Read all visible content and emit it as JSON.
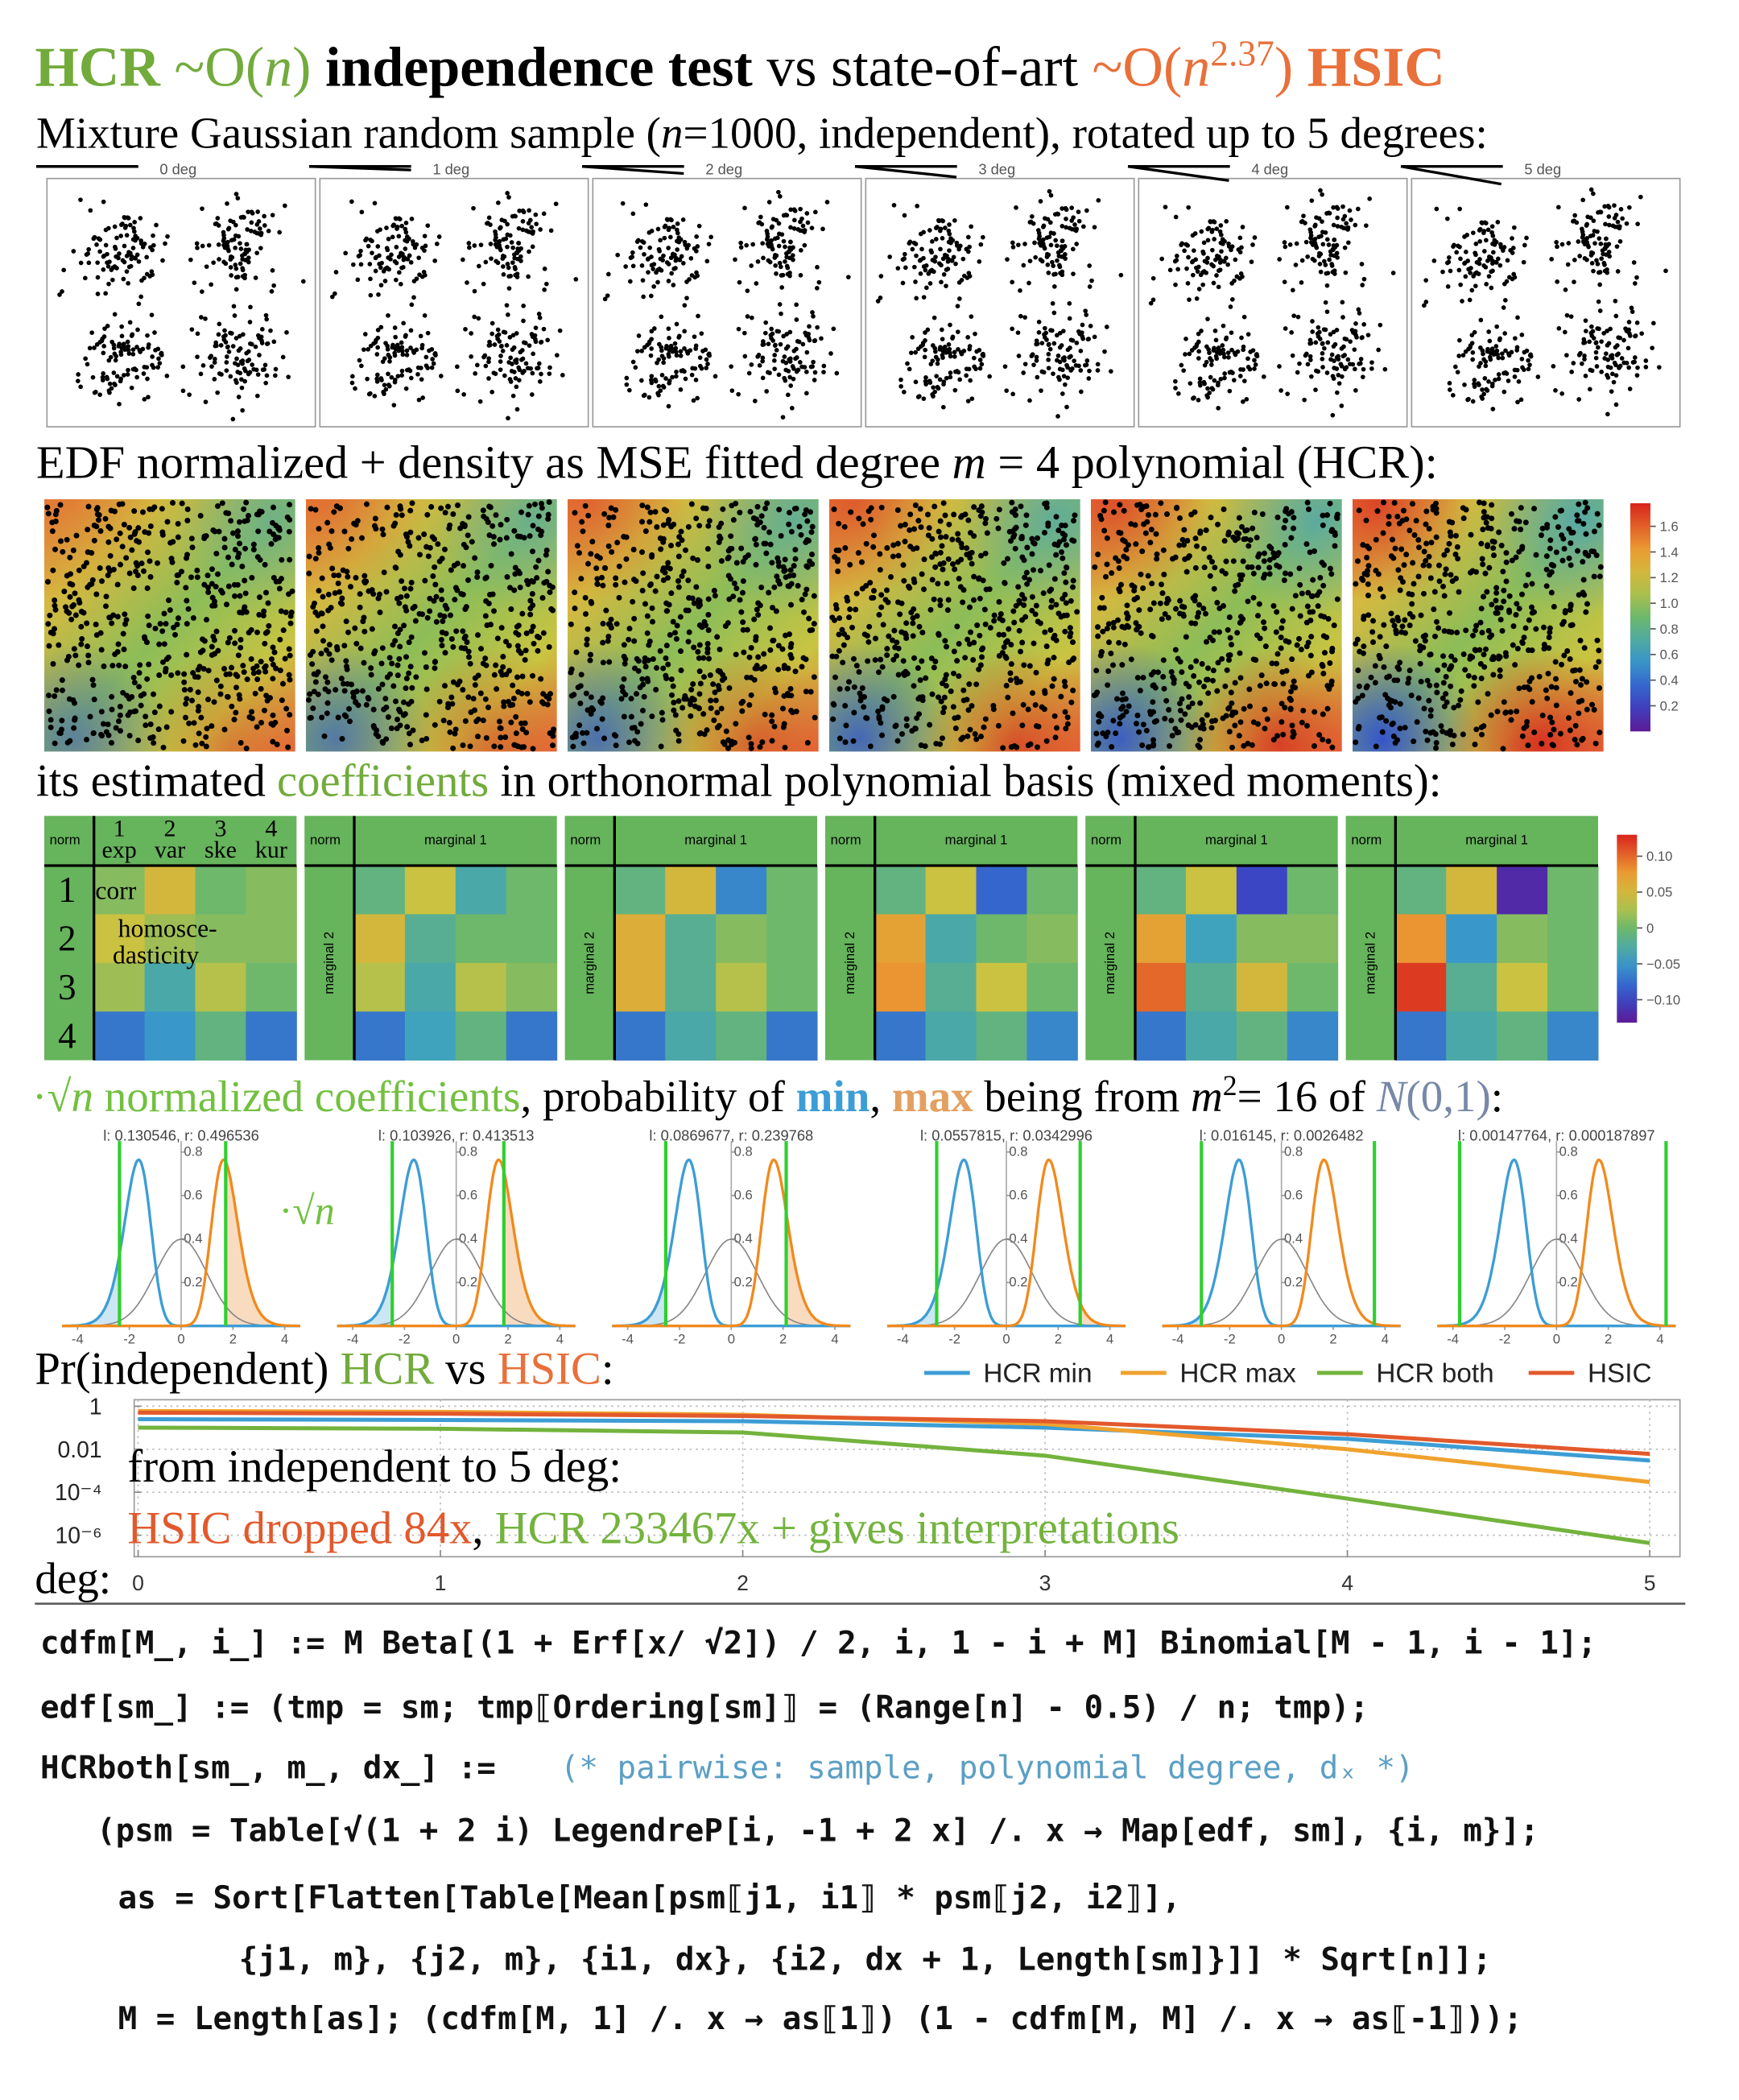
{
  "title": {
    "parts": [
      {
        "text": "HCR",
        "color": "#72ab3c",
        "bold": true
      },
      {
        "text": " ~O(",
        "color": "#72ab3c"
      },
      {
        "text": "n",
        "color": "#72ab3c",
        "italic": true
      },
      {
        "text": ")",
        "color": "#72ab3c"
      },
      {
        "text": " independence test",
        "bold": true
      },
      {
        "text": " vs state-of-art "
      },
      {
        "text": "~O(",
        "color": "#e8703a"
      },
      {
        "text": "n",
        "color": "#e8703a",
        "italic": true
      },
      {
        "text": "2.37",
        "color": "#e8703a",
        "sup": true
      },
      {
        "text": ")",
        "color": "#e8703a"
      },
      {
        "text": " HSIC",
        "color": "#e8703a",
        "bold": true
      }
    ]
  },
  "samples": {
    "caption": {
      "parts": [
        {
          "text": "Mixture Gaussian random sample ("
        },
        {
          "text": "n",
          "italic": true
        },
        {
          "text": "=1000, independent), rotated up to 5 degrees:"
        }
      ]
    },
    "rotations": [
      0,
      1,
      2,
      3,
      4,
      5
    ],
    "rotation_labels": [
      "0 deg",
      "1 deg",
      "2 deg",
      "3 deg",
      "4 deg",
      "5 deg"
    ]
  },
  "densities": {
    "caption": {
      "parts": [
        {
          "text": "EDF normalized + density as MSE fitted degree "
        },
        {
          "text": "m",
          "italic": true
        },
        {
          "text": " = 4 polynomial (HCR):"
        }
      ]
    },
    "colorbar_lim": [
      0,
      1.78
    ],
    "colorbar_ticks": [
      1.6,
      1.4,
      1.2,
      {
        "value": 1,
        "label": "1.0"
      },
      0.8,
      0.6,
      0.4,
      0.2
    ]
  },
  "coefficients": {
    "caption": {
      "parts": [
        {
          "text": "its estimated "
        },
        {
          "text": "coefficients",
          "color": "#72ab3c"
        },
        {
          "text": " in orthonormal polynomial basis (mixed moments):"
        }
      ]
    },
    "norm_label": "norm",
    "marginal1_label": "marginal 1",
    "marginal2_label": "marginal 2",
    "column_numbers": [
      "1",
      "2",
      "3",
      "4"
    ],
    "column_names": [
      "exp",
      "var",
      "ske",
      "kur"
    ],
    "row_labels": [
      "1",
      "2",
      "3",
      "4"
    ],
    "corr_label": "corr",
    "homoscedasticity_label": [
      "homosce-",
      "dasticity"
    ],
    "matrices": [
      [
        [
          0.01,
          0.05,
          0.0,
          0.01
        ],
        [
          0.04,
          0.02,
          0.01,
          0.01
        ],
        [
          0.02,
          -0.03,
          0.03,
          0.0
        ],
        [
          -0.07,
          -0.05,
          -0.01,
          -0.07
        ]
      ],
      [
        [
          -0.01,
          0.04,
          -0.03,
          0.0
        ],
        [
          0.05,
          -0.02,
          0.0,
          0.0
        ],
        [
          0.03,
          -0.03,
          0.03,
          0.01
        ],
        [
          -0.07,
          -0.04,
          -0.01,
          -0.07
        ]
      ],
      [
        [
          -0.01,
          0.05,
          -0.06,
          0.0
        ],
        [
          0.06,
          -0.02,
          0.01,
          0.0
        ],
        [
          0.06,
          -0.02,
          0.03,
          0.0
        ],
        [
          -0.07,
          -0.03,
          -0.01,
          -0.07
        ]
      ],
      [
        [
          -0.01,
          0.04,
          -0.08,
          0.0
        ],
        [
          0.07,
          -0.03,
          0.0,
          0.01
        ],
        [
          0.08,
          -0.02,
          0.04,
          0.0
        ],
        [
          -0.07,
          -0.03,
          -0.01,
          -0.06
        ]
      ],
      [
        [
          -0.01,
          0.04,
          -0.1,
          0.0
        ],
        [
          0.07,
          -0.04,
          0.01,
          0.01
        ],
        [
          0.1,
          -0.02,
          0.05,
          0.0
        ],
        [
          -0.07,
          -0.03,
          -0.01,
          -0.06
        ]
      ],
      [
        [
          -0.01,
          0.05,
          -0.12,
          0.0
        ],
        [
          0.08,
          -0.05,
          0.01,
          0.0
        ],
        [
          0.12,
          -0.02,
          0.04,
          0.0
        ],
        [
          -0.07,
          -0.03,
          -0.01,
          -0.06
        ]
      ]
    ],
    "colorbar_lim": [
      -0.132,
      0.13
    ],
    "colorbar_ticks": [
      {
        "value": 0.1,
        "label": "0.10"
      },
      0.05,
      0,
      {
        "value": -0.05,
        "label": "−0.05"
      },
      {
        "value": -0.1,
        "label": "−0.10"
      }
    ]
  },
  "normalized": {
    "caption": {
      "parts": [
        {
          "text": "·√",
          "color": "#72c040"
        },
        {
          "text": "n",
          "color": "#72c040",
          "italic": true
        },
        {
          "text": " normalized coefficients",
          "color": "#72c040"
        },
        {
          "text": ", probability of "
        },
        {
          "text": "min",
          "color": "#3d9dd5",
          "bold": true
        },
        {
          "text": ", "
        },
        {
          "text": "max",
          "color": "#e3a060",
          "bold": true
        },
        {
          "text": " being from "
        },
        {
          "text": "m",
          "italic": true
        },
        {
          "text": "2",
          "sup": true
        },
        {
          "text": "= 16 of "
        },
        {
          "text": "N",
          "color": "#7888a8",
          "italic": true
        },
        {
          "text": "(0,1)",
          "color": "#7888a8"
        },
        {
          "text": ":"
        }
      ]
    },
    "annotation": {
      "parts": [
        {
          "text": "·√",
          "color": "#72c040"
        },
        {
          "text": "n",
          "color": "#72c040",
          "italic": true
        }
      ]
    },
    "prob_labels": [
      "l: 0.130546, r: 0.496536",
      "l: 0.103926, r: 0.413513",
      "l: 0.0869677, r: 0.239768",
      "l: 0.0557815, r: 0.0342996",
      "l: 0.016145, r: 0.0026482",
      "l: 0.00147764, r: 0.000187897"
    ],
    "min_values": [
      -2.38,
      -2.47,
      -2.53,
      -2.69,
      -3.09,
      -3.74
    ],
    "max_values": [
      1.72,
      1.84,
      2.12,
      2.85,
      3.59,
      4.23
    ],
    "xticks": [
      -4,
      -2,
      0,
      2,
      4
    ],
    "yticks": [
      0.2,
      0.4,
      0.6,
      0.8
    ]
  },
  "chart_data": {
    "type": "line",
    "title": {
      "parts": [
        {
          "text": "Pr(independent) "
        },
        {
          "text": "HCR",
          "color": "#72ab3c"
        },
        {
          "text": " vs "
        },
        {
          "text": "HSIC",
          "color": "#e8703a"
        },
        {
          "text": ":"
        }
      ]
    },
    "x_label": "deg:",
    "x": [
      0,
      1,
      2,
      3,
      4,
      5
    ],
    "series": [
      {
        "name": "HCR min",
        "color": "#3d9dd5",
        "values": [
          0.25,
          0.23,
          0.2,
          0.1,
          0.03,
          0.003
        ]
      },
      {
        "name": "HCR max",
        "color": "#f0a22e",
        "values": [
          0.6,
          0.55,
          0.4,
          0.15,
          0.01,
          0.0003
        ]
      },
      {
        "name": "HCR both",
        "color": "#73b33d",
        "values": [
          0.1,
          0.09,
          0.06,
          0.005,
          5e-05,
          4.3e-07
        ]
      },
      {
        "name": "HSIC",
        "color": "#e2592c",
        "values": [
          0.5,
          0.45,
          0.35,
          0.2,
          0.05,
          0.006
        ]
      }
    ],
    "xlim": [
      -0.013,
      5.1
    ],
    "ylim": [
      1e-07,
      2
    ],
    "log_y": true,
    "xticks": [
      0,
      1,
      2,
      3,
      4,
      5
    ],
    "yticks": [
      1,
      0.01,
      {
        "value": 0.0001,
        "label": "10⁻⁴"
      },
      {
        "value": 1e-06,
        "label": "10⁻⁶"
      }
    ],
    "grid": true,
    "legend": "top-right",
    "annotations": [
      {
        "parts": [
          {
            "text": "from independent to 5 deg:"
          }
        ]
      },
      {
        "parts": [
          {
            "text": "HSIC dropped 84x",
            "color": "#e2592c"
          },
          {
            "text": ", "
          },
          {
            "text": "HCR 233467x + gives interpretations",
            "color": "#73b33d"
          }
        ]
      }
    ]
  },
  "code": {
    "lines": [
      [
        {
          "text": "cdfm[M_, i_] := M Beta[(1 + Erf[x/ √2]) / 2, i, 1 - i + M] Binomial[M - 1, i - 1];"
        }
      ],
      [
        {
          "text": "edf[sm_] := (tmp = sm; tmp⟦Ordering[sm]⟧ = (Range[n] - 0.5) / n; tmp);"
        }
      ],
      [
        {
          "text": "HCRboth[sm_, m_, dx_] :="
        },
        {
          "text": "(* pairwise: sample, polynomial degree, dₓ *)",
          "style": "comment",
          "color": "#5b9fc4"
        }
      ],
      [
        {
          "text": "(psm = Table[√(1 + 2 i) LegendreP[i, -1 + 2 x] /. x → Map[edf, sm], {i, m}];"
        }
      ],
      [
        {
          "text": "as = Sort[Flatten[Table[Mean[psm⟦j1, i1⟧ * psm⟦j2, i2⟧],"
        }
      ],
      [
        {
          "text": "{j1, m}, {j2, m}, {i1, dx}, {i2, dx + 1, Length[sm]}]] * Sqrt[n]];"
        }
      ],
      [
        {
          "text": "M = Length[as]; (cdfm[M, 1] /. x → as⟦1⟧) (1 - cdfm[M, M] /. x → as⟦-1⟧));"
        }
      ]
    ]
  }
}
